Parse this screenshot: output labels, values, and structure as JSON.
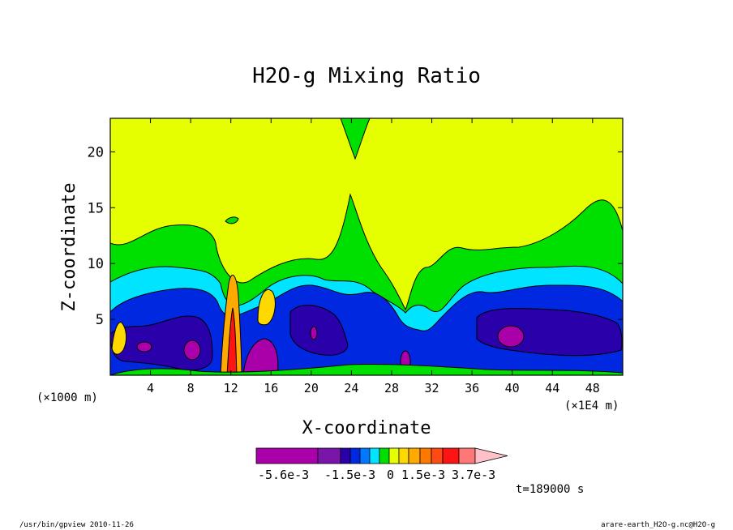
{
  "chart_data": {
    "type": "heatmap",
    "title": "H2O-g Mixing Ratio",
    "xlabel": "X-coordinate",
    "ylabel": "Z-coordinate",
    "x_unit_left": "(×1000 m)",
    "x_unit_right": "(×1E4 m)",
    "xlim": [
      0,
      51
    ],
    "ylim": [
      0,
      23
    ],
    "xticks": [
      4,
      8,
      12,
      16,
      20,
      24,
      28,
      32,
      36,
      40,
      44,
      48
    ],
    "yticks": [
      5,
      10,
      15,
      20
    ],
    "colorbar": {
      "colors": [
        "#aa00aa",
        "#7a15aa",
        "#2a00aa",
        "#0028e0",
        "#0078ff",
        "#00e4ff",
        "#00e000",
        "#e6ff00",
        "#ffd800",
        "#ffaa00",
        "#ff7800",
        "#ff4a14",
        "#ff1414",
        "#ff7878",
        "#ffc0c8"
      ],
      "labels": [
        "-5.6e-3",
        "-1.5e-3",
        "0",
        "1.5e-3",
        "3.7e-3"
      ]
    },
    "time_label": "t=189000 s"
  },
  "footer": {
    "left": "/usr/bin/gpview  2010-11-26",
    "right": "arare-earth_H2O-g.nc@H2O-g"
  }
}
